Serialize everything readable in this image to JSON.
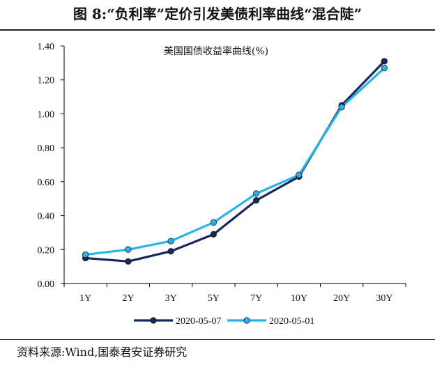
{
  "figure": {
    "title": "图 8:“负利率”定价引发美债利率曲线“混合陡”",
    "source": "资料来源:Wind,国泰君安证券研究"
  },
  "colors": {
    "series1": "#14285a",
    "series2": "#27b3e8",
    "axis": "#000000"
  },
  "chart_data": {
    "type": "line",
    "title": "美国国债收益率曲线(%)",
    "categories": [
      "1Y",
      "2Y",
      "3Y",
      "5Y",
      "7Y",
      "10Y",
      "20Y",
      "30Y"
    ],
    "series": [
      {
        "name": "2020-05-07",
        "values": [
          0.15,
          0.13,
          0.19,
          0.29,
          0.49,
          0.63,
          1.05,
          1.31
        ]
      },
      {
        "name": "2020-05-01",
        "values": [
          0.17,
          0.2,
          0.25,
          0.36,
          0.53,
          0.64,
          1.04,
          1.27
        ]
      }
    ],
    "ylim": [
      0,
      1.4
    ],
    "yticks": [
      "0.00",
      "0.20",
      "0.40",
      "0.60",
      "0.80",
      "1.00",
      "1.20",
      "1.40"
    ],
    "legend_position": "bottom",
    "grid": false
  }
}
